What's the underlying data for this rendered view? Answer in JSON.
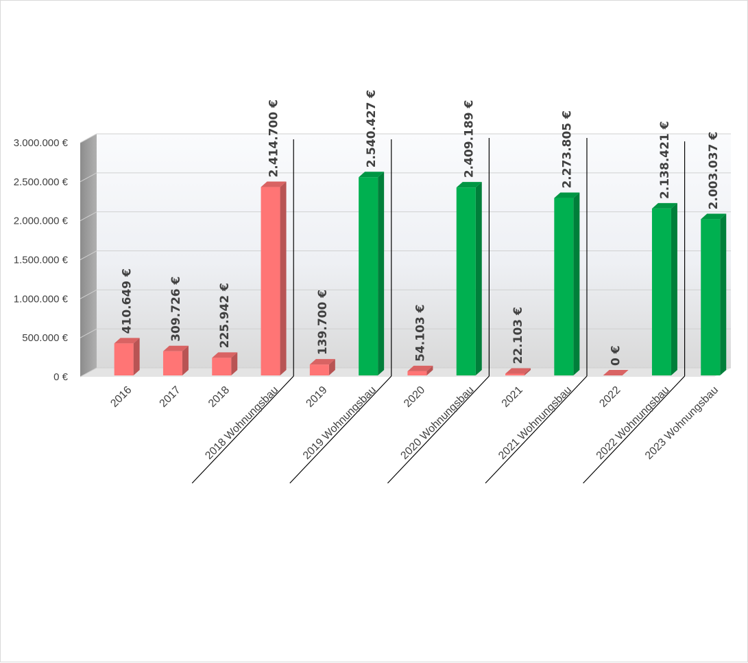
{
  "chart_data": {
    "type": "bar",
    "title": "",
    "xlabel": "",
    "ylabel": "",
    "ylim": [
      0,
      3000000
    ],
    "grid": true,
    "legend": "none",
    "y_ticks": [
      "0 €",
      "500.000 €",
      "1.000.000 €",
      "1.500.000 €",
      "2.000.000 €",
      "2.500.000 €",
      "3.000.000 €"
    ],
    "categories": [
      "2016",
      "2017",
      "2018",
      "2018 Wohnungsbau",
      "2019",
      "2019 Wohnungsbau",
      "2020",
      "2020 Wohnungsbau",
      "2021",
      "2021 Wohnungsbau",
      "2022",
      "2022 Wohnungsbau",
      "2023 Wohnungsbau"
    ],
    "values": [
      410649,
      309726,
      225942,
      2414700,
      139700,
      2540427,
      54103,
      2409189,
      22103,
      2273805,
      0,
      2138421,
      2003037
    ],
    "data_labels": [
      "410.649 €",
      "309.726 €",
      "225.942 €",
      "2.414.700 €",
      "139.700 €",
      "2.540.427 €",
      "54.103 €",
      "2.409.189 €",
      "22.103 €",
      "2.273.805 €",
      "0 €",
      "2.138.421 €",
      "2.003.037 €"
    ],
    "bar_colors": [
      "#FF7575",
      "#FF7575",
      "#FF7575",
      "#FF7575",
      "#FF7575",
      "#00B050",
      "#FF7575",
      "#00B050",
      "#FF7575",
      "#00B050",
      "#FF7575",
      "#00B050",
      "#00B050"
    ],
    "colors": {
      "red_series": "#FF7575",
      "green_series": "#00B050"
    }
  }
}
